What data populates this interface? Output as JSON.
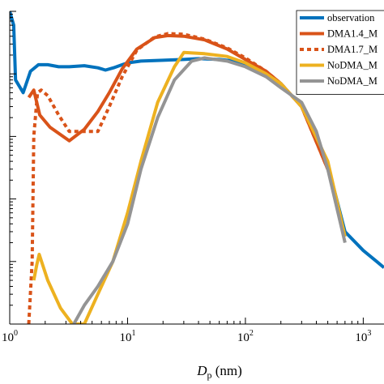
{
  "chart_data": {
    "type": "line",
    "x_scale": "log",
    "y_scale": "log",
    "xlim": [
      1,
      1500
    ],
    "ylim": [
      0.0001,
      10
    ],
    "xlabel": {
      "main": "D",
      "sub": "p",
      "unit": " (nm)"
    },
    "ylabel": "",
    "x_ticks": [
      {
        "value": 1,
        "base": "10",
        "exp": "0"
      },
      {
        "value": 10,
        "base": "10",
        "exp": "1"
      },
      {
        "value": 100,
        "base": "10",
        "exp": "2"
      },
      {
        "value": 1000,
        "base": "10",
        "exp": "3"
      }
    ],
    "grid": false,
    "legend_position": "top-right",
    "series": [
      {
        "name": "observation",
        "color": "#0072BD",
        "style": "solid",
        "x": [
          1.0,
          1.08,
          1.12,
          1.3,
          1.5,
          1.75,
          2.1,
          2.6,
          3.2,
          4.3,
          5.6,
          6.5,
          7.6,
          9.0,
          10.0,
          13.0,
          20.0,
          30.0,
          40.0,
          60.0,
          80.0,
          100.0,
          150.0,
          200.0,
          300.0,
          500.0,
          700.0,
          1000.0,
          1300.0,
          1500.0
        ],
        "y": [
          10.0,
          6.0,
          0.8,
          0.5,
          1.1,
          1.4,
          1.4,
          1.3,
          1.3,
          1.35,
          1.25,
          1.15,
          1.25,
          1.4,
          1.5,
          1.6,
          1.65,
          1.7,
          1.75,
          1.7,
          1.6,
          1.4,
          1.0,
          0.7,
          0.3,
          0.035,
          0.003,
          0.0015,
          0.001,
          0.0008
        ]
      },
      {
        "name": "DMA1.4_M",
        "color": "#D95319",
        "style": "solid",
        "x": [
          1.45,
          1.6,
          1.8,
          2.2,
          3.2,
          4.3,
          5.6,
          7.0,
          9.0,
          12.0,
          17.0,
          22.0,
          30.0,
          45.0,
          70.0,
          100.0,
          150.0,
          200.0,
          300.0,
          500.0
        ],
        "y": [
          0.42,
          0.55,
          0.22,
          0.14,
          0.085,
          0.13,
          0.25,
          0.5,
          1.2,
          2.5,
          3.8,
          4.1,
          4.0,
          3.5,
          2.5,
          1.7,
          1.1,
          0.7,
          0.3,
          0.03
        ]
      },
      {
        "name": "DMA1.7_M",
        "color": "#D95319",
        "style": "dashed",
        "x": [
          1.45,
          1.55,
          1.6,
          1.72,
          1.85,
          2.1,
          2.6,
          3.2,
          4.3,
          5.6,
          7.0,
          9.0,
          12.0,
          17.0,
          22.0,
          30.0,
          45.0,
          70.0,
          100.0,
          150.0,
          200.0,
          300.0,
          500.0
        ],
        "y": [
          0.0001,
          0.001,
          0.1,
          0.5,
          0.55,
          0.45,
          0.22,
          0.12,
          0.12,
          0.12,
          0.3,
          0.9,
          2.4,
          3.9,
          4.4,
          4.3,
          3.6,
          2.6,
          1.8,
          1.1,
          0.7,
          0.3,
          0.03
        ]
      },
      {
        "name": "NoDMA_M",
        "color": "#EDB120",
        "style": "solid",
        "x": [
          1.6,
          1.7,
          1.78,
          2.1,
          2.7,
          3.4,
          4.3,
          5.6,
          7.5,
          10.0,
          13.0,
          18.0,
          25.0,
          30.0,
          45.0,
          70.0,
          100.0,
          150.0,
          200.0,
          300.0,
          500.0,
          700.0
        ],
        "y": [
          0.0005,
          0.0009,
          0.0013,
          0.0005,
          0.00018,
          0.0001,
          0.0001,
          0.0003,
          0.001,
          0.006,
          0.04,
          0.35,
          1.3,
          2.2,
          2.1,
          1.9,
          1.5,
          1.0,
          0.7,
          0.3,
          0.04,
          0.0025
        ]
      },
      {
        "name": "NoDMA_M",
        "color": "#949494",
        "style": "solid",
        "x": [
          3.5,
          4.3,
          5.6,
          7.5,
          10.0,
          13.0,
          18.0,
          25.0,
          35.0,
          45.0,
          70.0,
          100.0,
          150.0,
          200.0,
          300.0,
          400.0,
          500.0,
          700.0
        ],
        "y": [
          0.0001,
          0.0002,
          0.0004,
          0.001,
          0.004,
          0.03,
          0.2,
          0.8,
          1.6,
          1.8,
          1.6,
          1.3,
          0.9,
          0.6,
          0.35,
          0.12,
          0.03,
          0.002
        ]
      }
    ]
  }
}
